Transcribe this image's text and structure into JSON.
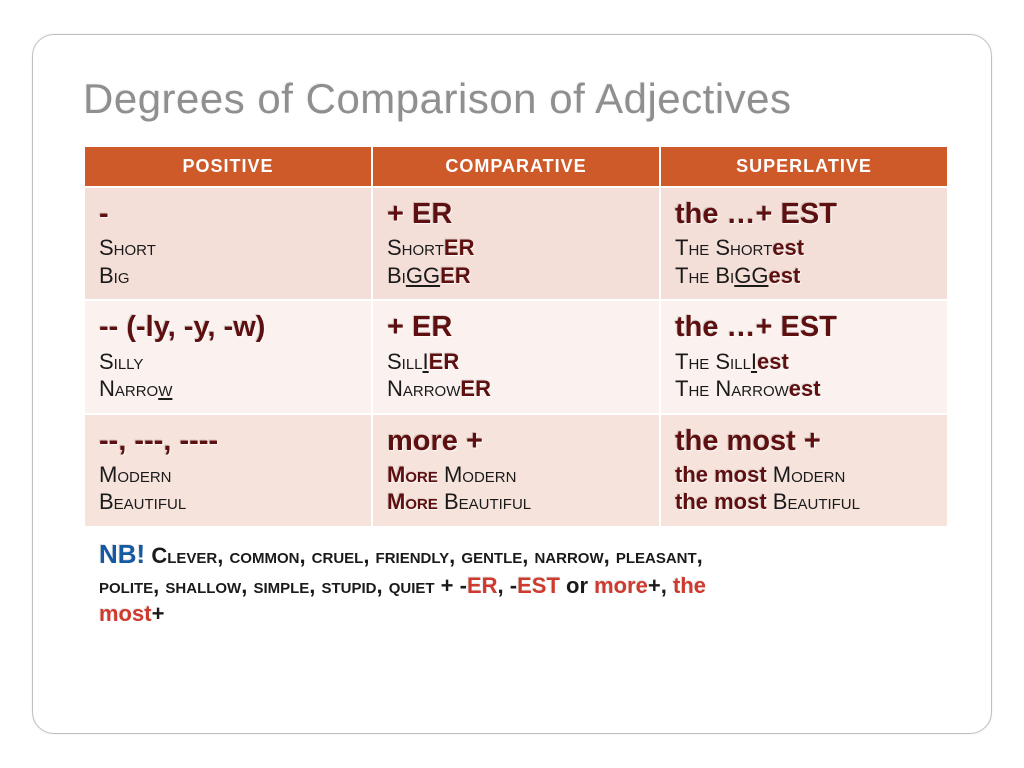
{
  "title": "Degrees of Comparison of Adjectives",
  "headers": {
    "c0": "POSITIVE",
    "c1": "COMPARATIVE",
    "c2": "SUPERLATIVE"
  },
  "rows": {
    "r1": {
      "pos_rule": "-",
      "pos_ex1": "Short",
      "pos_ex2": "Big",
      "cmp_rule": "+ ER",
      "cmp_ex1_a": "Short",
      "cmp_ex1_b": "ER",
      "cmp_ex2_a": "Bi",
      "cmp_ex2_u": "GG",
      "cmp_ex2_b": "ER",
      "sup_rule": "the …+ EST",
      "sup_ex1_a": "The Short",
      "sup_ex1_b": "est",
      "sup_ex2_a": "The Bi",
      "sup_ex2_u": "GG",
      "sup_ex2_b": "est"
    },
    "r2": {
      "pos_rule": "-- (-ly, -y, -w)",
      "pos_ex1": "Silly",
      "pos_ex2_a": "Narro",
      "pos_ex2_u": "w",
      "cmp_rule": "+ ER",
      "cmp_ex1_a": "Sill",
      "cmp_ex1_u": "I",
      "cmp_ex1_b": "ER",
      "cmp_ex2_a": "Narrow",
      "cmp_ex2_b": "ER",
      "sup_rule": "the …+ EST",
      "sup_ex1_a": "The Sill",
      "sup_ex1_u": "I",
      "sup_ex1_b": "est",
      "sup_ex2_a": "The Narrow",
      "sup_ex2_b": "est"
    },
    "r3": {
      "pos_rule": "--, ---, ----",
      "pos_ex1": "Modern",
      "pos_ex2": "Beautiful",
      "cmp_rule": "more +",
      "cmp_m": "More ",
      "cmp_ex1": "Modern",
      "cmp_ex2": "Beautiful",
      "sup_rule": "the most +",
      "sup_m": "the most ",
      "sup_ex1": "Modern",
      "sup_ex2": "Beautiful"
    }
  },
  "nb": {
    "tag": "NB!",
    "list1": " Clever, common, cruel, friendly, gentle, narrow, pleasant,",
    "list2": "polite, shallow, simple, stupid, quiet + -",
    "er": "ER",
    "mid": ", -",
    "est": "EST",
    "or": " or ",
    "more": "more",
    "plus": "+, ",
    "the": "the ",
    "most": "most",
    "plus2": "+"
  },
  "style": {
    "header_bg": "#ce5929",
    "header_fg": "#ffffff",
    "row_bg_odd": "#f3dfd8",
    "row_bg_even": "#fbf1ee",
    "rule_color": "#5e0f0f",
    "accent_color": "#cf3a2e",
    "nb_color": "#1559a3",
    "title_color": "#8f8f8f",
    "title_fontsize": 42,
    "rule_fontsize": 29,
    "body_fontsize": 22,
    "header_fontsize": 18,
    "slide_border_radius": 22,
    "slide_border_color": "#bfbfbf"
  }
}
